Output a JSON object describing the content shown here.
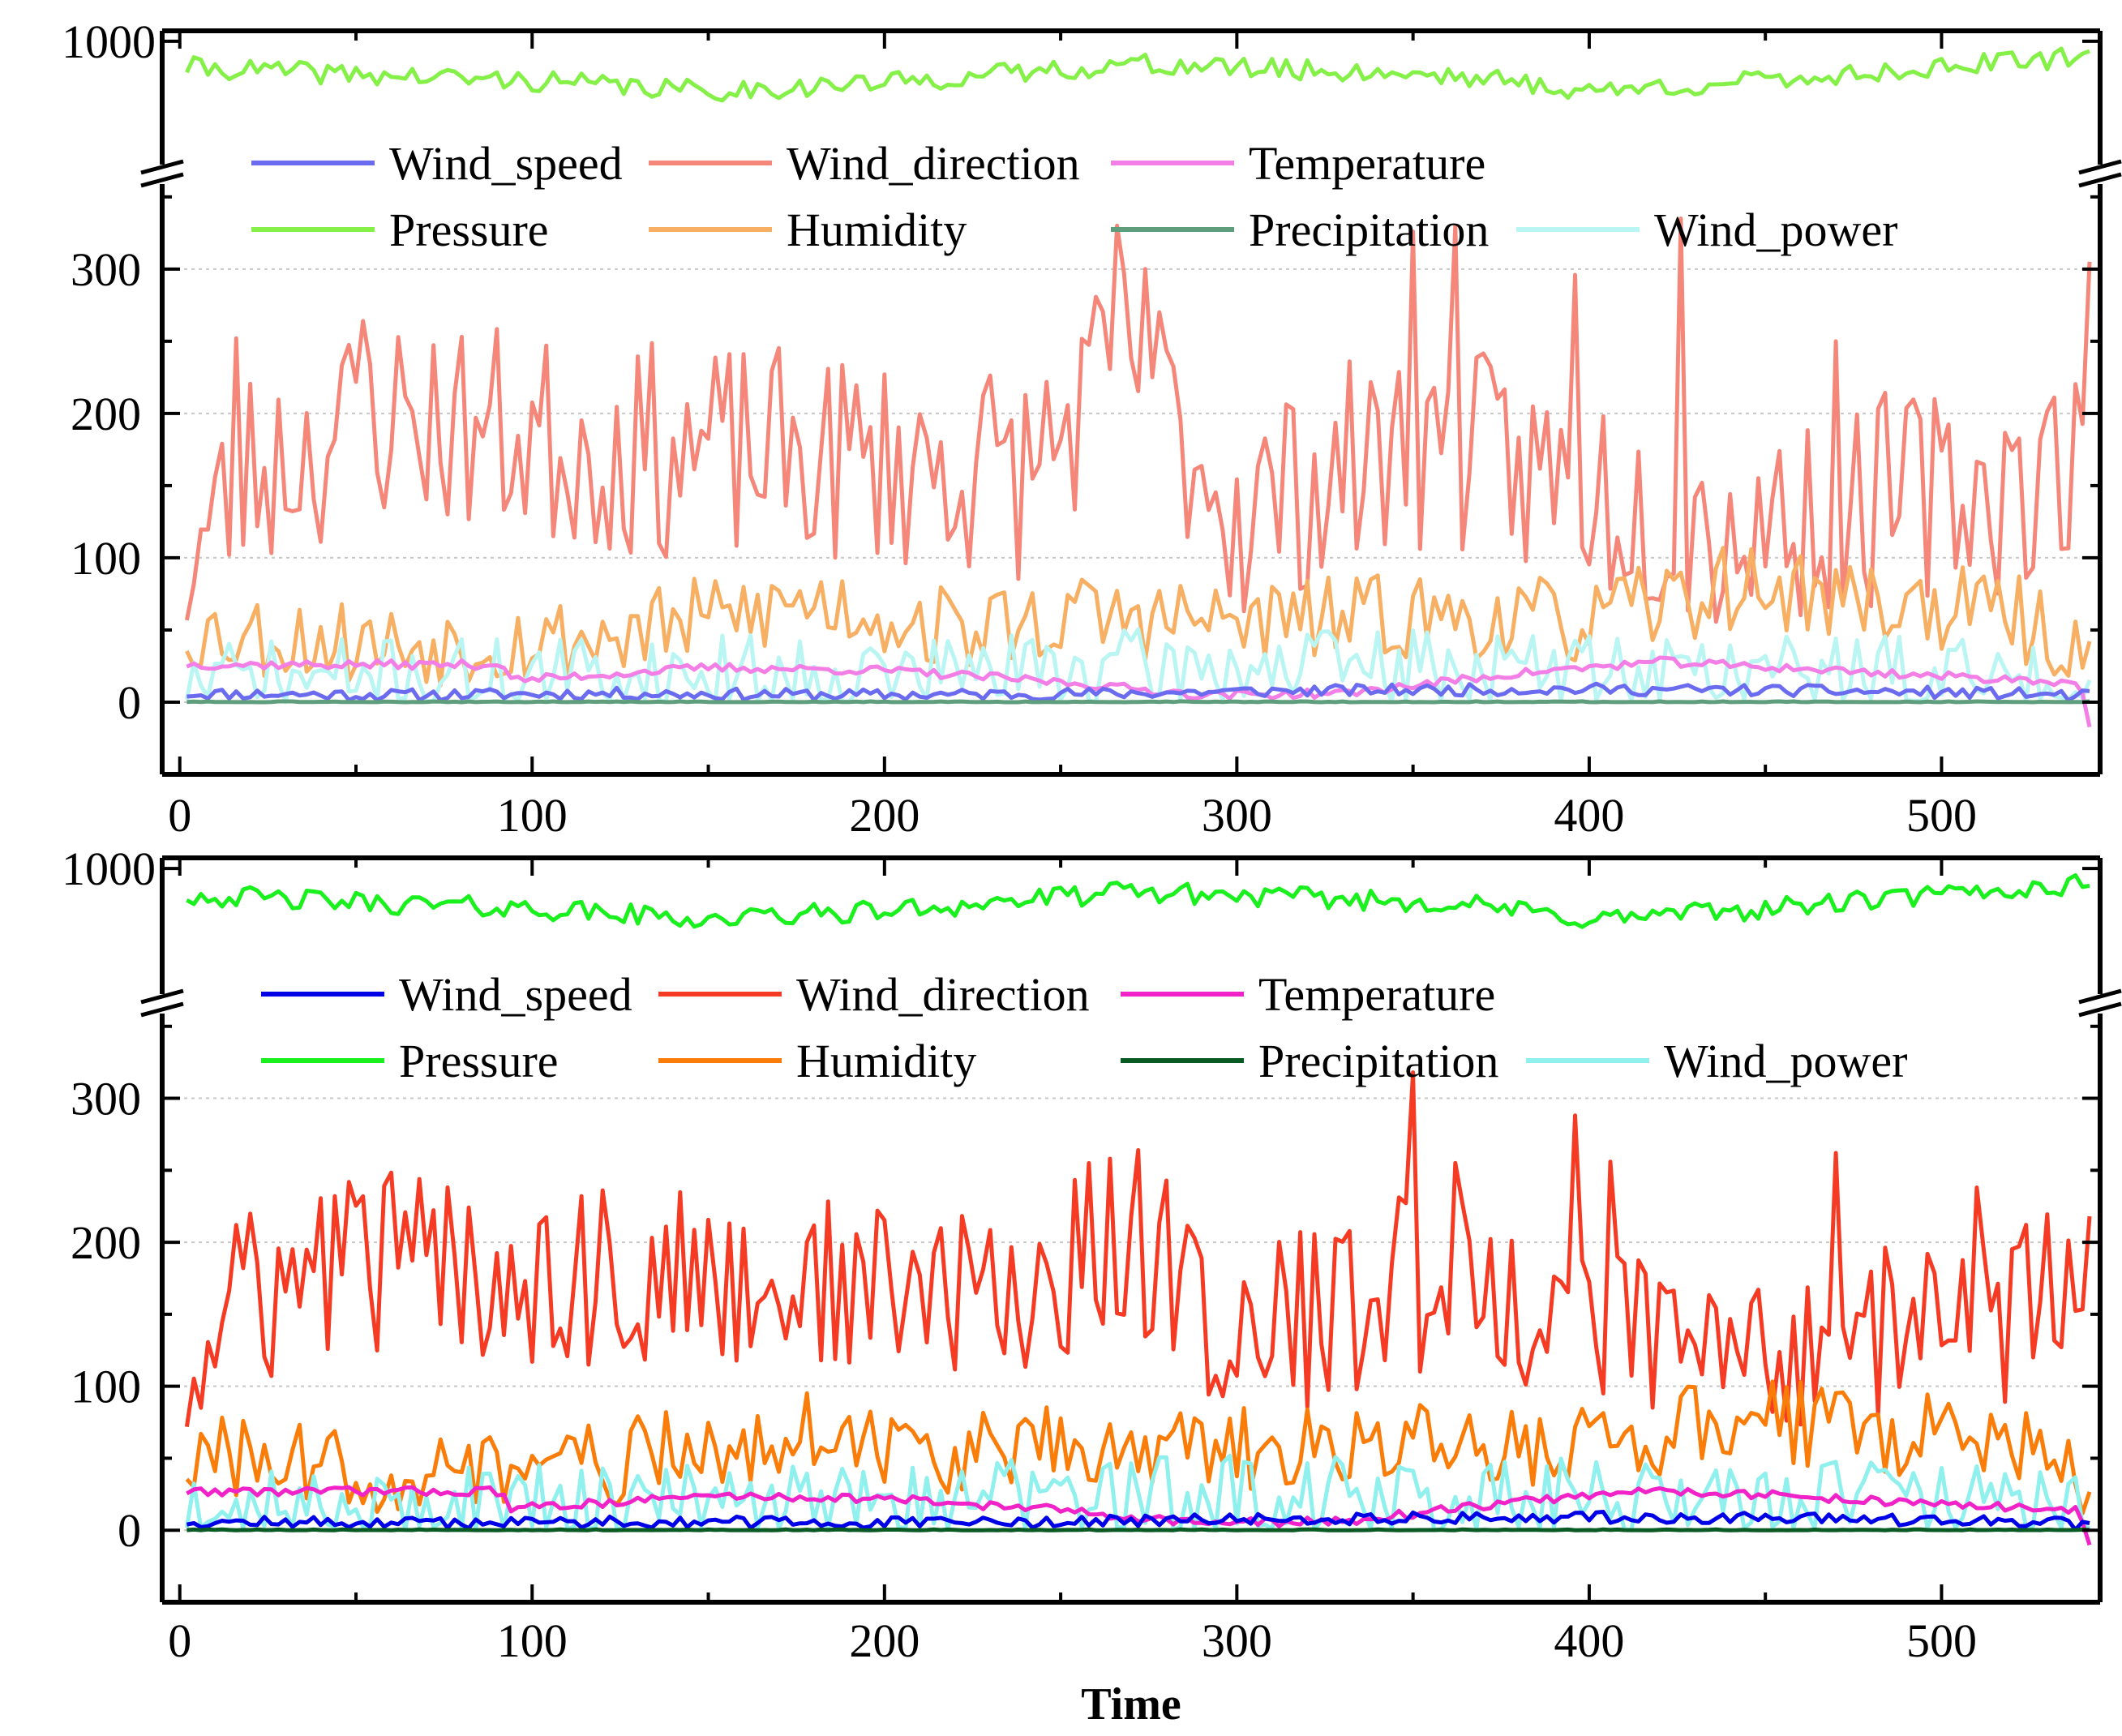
{
  "chart_data": [
    {
      "type": "line",
      "panel": "top",
      "xlabel": "",
      "xlim": [
        -5,
        545
      ],
      "xticks": [
        0,
        100,
        200,
        300,
        400,
        500
      ],
      "yticks_lower": [
        0,
        100,
        200,
        300
      ],
      "ylim_lower": [
        -50,
        360
      ],
      "yticks_upper": [
        1000
      ],
      "ylim_upper": [
        880,
        1010
      ],
      "axis_break": true,
      "grid": "dotted horizontal",
      "legend_position": "top",
      "legend": [
        "Wind_speed",
        "Wind_direction",
        "Temperature",
        "Pressure",
        "Humidity",
        "Precipitation",
        "Wind_power"
      ],
      "series": [
        {
          "name": "Wind_speed",
          "color": "#6b6bf0",
          "knots": [
            [
              2,
              6
            ],
            [
              60,
              5
            ],
            [
              120,
              6
            ],
            [
              200,
              5
            ],
            [
              260,
              6
            ],
            [
              320,
              8
            ],
            [
              400,
              9
            ],
            [
              460,
              8
            ],
            [
              520,
              6
            ],
            [
              542,
              4
            ]
          ],
          "amp": 4,
          "seed": 11
        },
        {
          "name": "Wind_direction",
          "color": "#f5877a",
          "knots": [
            [
              2,
              95
            ],
            [
              20,
              160
            ],
            [
              60,
              200
            ],
            [
              120,
              175
            ],
            [
              180,
              170
            ],
            [
              240,
              160
            ],
            [
              270,
              240
            ],
            [
              300,
              130
            ],
            [
              350,
              180
            ],
            [
              400,
              150
            ],
            [
              440,
              120
            ],
            [
              480,
              140
            ],
            [
              520,
              150
            ],
            [
              542,
              170
            ]
          ],
          "amp": 75,
          "seed": 23,
          "spikes": [
            [
              16,
              252
            ],
            [
              51,
              264
            ],
            [
              80,
              253
            ],
            [
              265,
              330
            ],
            [
              274,
              300
            ],
            [
              350,
              326
            ],
            [
              362,
              330
            ],
            [
              395,
              296
            ],
            [
              426,
              335
            ],
            [
              469,
              250
            ],
            [
              541,
              305
            ]
          ]
        },
        {
          "name": "Temperature",
          "color": "#f27ee6",
          "knots": [
            [
              2,
              26
            ],
            [
              92,
              26
            ],
            [
              94,
              15
            ],
            [
              150,
              24
            ],
            [
              200,
              22
            ],
            [
              250,
              14
            ],
            [
              290,
              5
            ],
            [
              330,
              6
            ],
            [
              380,
              20
            ],
            [
              420,
              28
            ],
            [
              470,
              22
            ],
            [
              500,
              18
            ],
            [
              539,
              14
            ],
            [
              542,
              -15
            ]
          ],
          "amp": 3,
          "seed": 37
        },
        {
          "name": "Pressure",
          "color": "#85f048",
          "knots": [
            [
              2,
              975
            ],
            [
              50,
              968
            ],
            [
              100,
              962
            ],
            [
              150,
              952
            ],
            [
              200,
              960
            ],
            [
              270,
              978
            ],
            [
              320,
              972
            ],
            [
              360,
              968
            ],
            [
              400,
              952
            ],
            [
              450,
              962
            ],
            [
              500,
              975
            ],
            [
              542,
              985
            ]
          ],
          "amp": 10,
          "seed": 41
        },
        {
          "name": "Humidity",
          "color": "#f7b063",
          "knots": [
            [
              2,
              50
            ],
            [
              60,
              40
            ],
            [
              120,
              45
            ],
            [
              180,
              70
            ],
            [
              220,
              50
            ],
            [
              260,
              60
            ],
            [
              300,
              55
            ],
            [
              350,
              60
            ],
            [
              400,
              55
            ],
            [
              440,
              80
            ],
            [
              480,
              70
            ],
            [
              520,
              60
            ],
            [
              542,
              30
            ]
          ],
          "amp": 30,
          "seed": 53
        },
        {
          "name": "Precipitation",
          "color": "#5e9e7c",
          "knots": [
            [
              2,
              0
            ],
            [
              542,
              0
            ]
          ],
          "amp": 0.6,
          "seed": 61
        },
        {
          "name": "Wind_power",
          "color": "#b9f5f2",
          "knots": [
            [
              2,
              15
            ],
            [
              100,
              18
            ],
            [
              200,
              20
            ],
            [
              300,
              25
            ],
            [
              400,
              22
            ],
            [
              500,
              20
            ],
            [
              542,
              10
            ]
          ],
          "amp": 28,
          "seed": 71
        }
      ]
    },
    {
      "type": "line",
      "panel": "bottom",
      "xlabel": "Time",
      "xlim": [
        -5,
        545
      ],
      "xticks": [
        0,
        100,
        200,
        300,
        400,
        500
      ],
      "yticks_lower": [
        0,
        100,
        200,
        300
      ],
      "ylim_lower": [
        -50,
        360
      ],
      "yticks_upper": [
        1000
      ],
      "ylim_upper": [
        880,
        1010
      ],
      "axis_break": true,
      "grid": "dotted horizontal",
      "legend_position": "top",
      "legend": [
        "Wind_speed",
        "Wind_direction",
        "Temperature",
        "Pressure",
        "Humidity",
        "Precipitation",
        "Wind_power"
      ],
      "series": [
        {
          "name": "Wind_speed",
          "color": "#0000e6",
          "knots": [
            [
              2,
              6
            ],
            [
              60,
              5
            ],
            [
              120,
              6
            ],
            [
              200,
              5
            ],
            [
              260,
              6
            ],
            [
              320,
              8
            ],
            [
              400,
              9
            ],
            [
              460,
              8
            ],
            [
              520,
              6
            ],
            [
              542,
              4
            ]
          ],
          "amp": 4,
          "seed": 12
        },
        {
          "name": "Wind_direction",
          "color": "#f53b23",
          "knots": [
            [
              2,
              105
            ],
            [
              20,
              160
            ],
            [
              60,
              190
            ],
            [
              120,
              175
            ],
            [
              180,
              170
            ],
            [
              240,
              160
            ],
            [
              270,
              210
            ],
            [
              300,
              130
            ],
            [
              350,
              170
            ],
            [
              400,
              150
            ],
            [
              440,
              120
            ],
            [
              480,
              140
            ],
            [
              520,
              150
            ],
            [
              542,
              170
            ]
          ],
          "amp": 65,
          "seed": 24,
          "spikes": [
            [
              16,
              212
            ],
            [
              43,
              232
            ],
            [
              113,
              232
            ],
            [
              264,
              258
            ],
            [
              271,
              264
            ],
            [
              350,
              318
            ],
            [
              362,
              255
            ],
            [
              395,
              288
            ],
            [
              405,
              256
            ],
            [
              469,
              262
            ],
            [
              509,
              238
            ],
            [
              541,
              218
            ]
          ]
        },
        {
          "name": "Temperature",
          "color": "#f022c8",
          "knots": [
            [
              2,
              27
            ],
            [
              92,
              27
            ],
            [
              94,
              15
            ],
            [
              150,
              24
            ],
            [
              200,
              22
            ],
            [
              250,
              14
            ],
            [
              290,
              5
            ],
            [
              330,
              6
            ],
            [
              380,
              20
            ],
            [
              420,
              28
            ],
            [
              470,
              22
            ],
            [
              500,
              18
            ],
            [
              539,
              14
            ],
            [
              542,
              -12
            ]
          ],
          "amp": 3,
          "seed": 38
        },
        {
          "name": "Pressure",
          "color": "#19f01e",
          "knots": [
            [
              2,
              975
            ],
            [
              50,
              968
            ],
            [
              100,
              962
            ],
            [
              150,
              952
            ],
            [
              200,
              960
            ],
            [
              270,
              978
            ],
            [
              320,
              972
            ],
            [
              360,
              968
            ],
            [
              400,
              952
            ],
            [
              450,
              962
            ],
            [
              500,
              975
            ],
            [
              542,
              985
            ]
          ],
          "amp": 10,
          "seed": 42
        },
        {
          "name": "Humidity",
          "color": "#fa7d0a",
          "knots": [
            [
              2,
              50
            ],
            [
              60,
              40
            ],
            [
              120,
              45
            ],
            [
              180,
              70
            ],
            [
              220,
              50
            ],
            [
              260,
              60
            ],
            [
              300,
              55
            ],
            [
              350,
              60
            ],
            [
              400,
              55
            ],
            [
              440,
              80
            ],
            [
              480,
              70
            ],
            [
              520,
              60
            ],
            [
              542,
              35
            ]
          ],
          "amp": 30,
          "seed": 54
        },
        {
          "name": "Precipitation",
          "color": "#0a5a23",
          "knots": [
            [
              2,
              0
            ],
            [
              542,
              0
            ]
          ],
          "amp": 0.6,
          "seed": 62
        },
        {
          "name": "Wind_power",
          "color": "#8ff0ee",
          "knots": [
            [
              2,
              15
            ],
            [
              100,
              18
            ],
            [
              200,
              20
            ],
            [
              300,
              25
            ],
            [
              400,
              22
            ],
            [
              500,
              20
            ],
            [
              542,
              10
            ]
          ],
          "amp": 28,
          "seed": 72
        }
      ]
    }
  ]
}
